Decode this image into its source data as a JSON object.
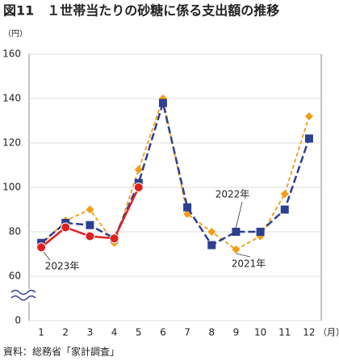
{
  "chart_data": {
    "type": "line",
    "title": "図11　１世帯当たりの砂糖に係る支出額の推移",
    "y_unit": "（円）",
    "x_unit": "（月）",
    "source": "資料：総務省「家計調査」",
    "categories": [
      "1",
      "2",
      "3",
      "4",
      "5",
      "6",
      "7",
      "8",
      "9",
      "10",
      "11",
      "12"
    ],
    "series": [
      {
        "name": "2021年",
        "color": "#f39c12",
        "values": [
          74,
          85,
          90,
          75,
          108,
          140,
          88,
          80,
          72,
          78,
          97,
          132
        ]
      },
      {
        "name": "2022年",
        "color": "#2e3f8f",
        "values": [
          75,
          84,
          83,
          77,
          102,
          138,
          91,
          74,
          80,
          80,
          90,
          122
        ]
      },
      {
        "name": "2023年",
        "color": "#e02020",
        "values": [
          73,
          82,
          78,
          77,
          100,
          null,
          null,
          null,
          null,
          null,
          null,
          null
        ]
      }
    ],
    "ylim": [
      0,
      160
    ],
    "yticks": [
      0,
      60,
      80,
      100,
      120,
      140,
      160
    ],
    "grid": true
  }
}
